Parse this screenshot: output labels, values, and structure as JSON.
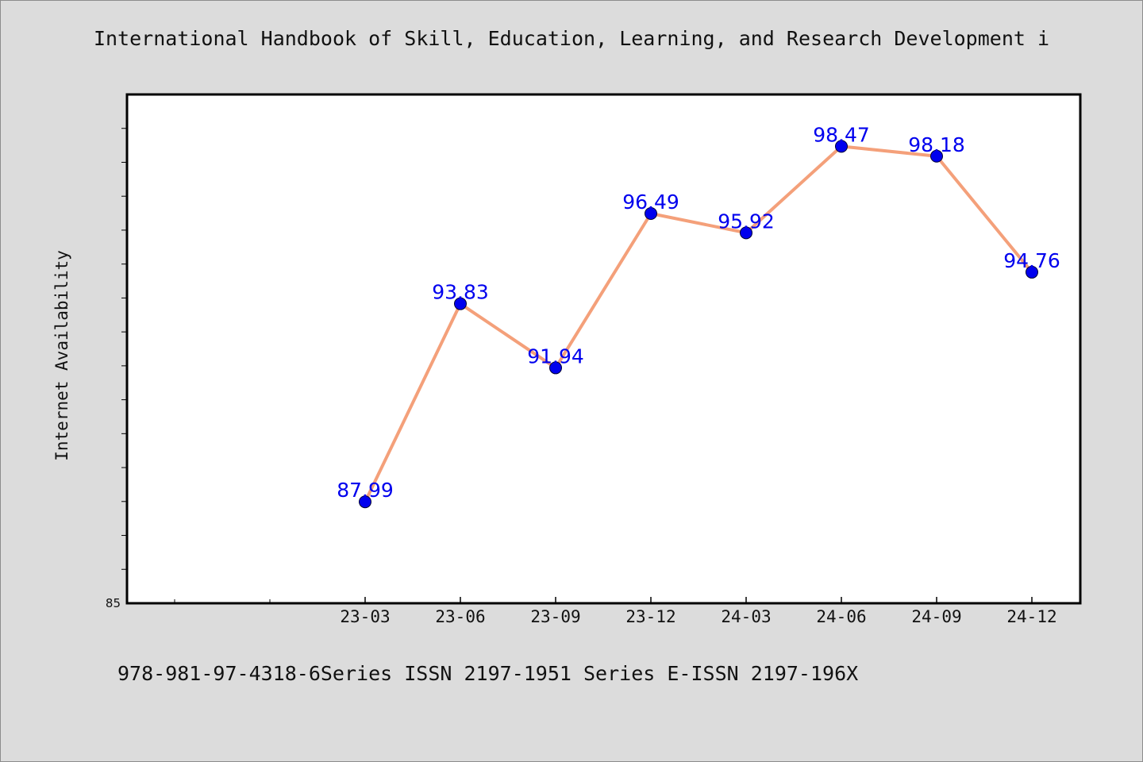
{
  "title": "International Handbook of Skill, Education, Learning, and Research Development i",
  "footer": "978-981-97-4318-6Series ISSN 2197-1951 Series E-ISSN 2197-196X",
  "colors": {
    "background": "#dcdcdc",
    "plot_background": "#ffffff",
    "line": "#f4a07a",
    "marker": "#0000ee",
    "data_label": "#0000ee"
  },
  "chart_data": {
    "type": "line",
    "title": "International Handbook of Skill, Education, Learning, and Research Development i",
    "xlabel": "",
    "ylabel": "Internet Availability",
    "categories": [
      "23-03",
      "23-06",
      "23-09",
      "23-12",
      "24-03",
      "24-06",
      "24-09",
      "24-12"
    ],
    "series": [
      {
        "values": [
          87.99,
          93.83,
          91.94,
          96.49,
          95.92,
          98.47,
          98.18,
          94.76
        ],
        "labels": [
          "87.99",
          "93.83",
          "91.94",
          "96.49",
          "95.92",
          "98.47",
          "98.18",
          "94.76"
        ]
      }
    ],
    "ylim": [
      85,
      100
    ],
    "ytick_labels": [
      "85"
    ],
    "grid": false,
    "legend": "none"
  }
}
